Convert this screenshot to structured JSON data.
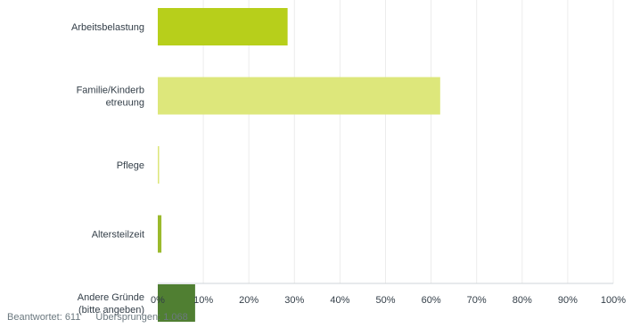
{
  "chart_data": {
    "type": "bar",
    "orientation": "horizontal",
    "categories": [
      [
        "Arbeitsbelastung"
      ],
      [
        "Familie/Kinderb",
        "etreuung"
      ],
      [
        "Pflege"
      ],
      [
        "Altersteilzeit"
      ],
      [
        "Andere Gründe",
        "(bitte angeben)"
      ]
    ],
    "values": [
      28.5,
      62.0,
      0.3,
      0.8,
      8.2
    ],
    "bar_colors": [
      "#b7cf1b",
      "#dde77b",
      "#dde77b",
      "#9bba2c",
      "#507f32"
    ],
    "xlim": [
      0,
      100
    ],
    "x_tick_labels": [
      "0%",
      "10%",
      "20%",
      "30%",
      "40%",
      "50%",
      "60%",
      "70%",
      "80%",
      "90%",
      "100%"
    ],
    "x_ticks": [
      0,
      10,
      20,
      30,
      40,
      50,
      60,
      70,
      80,
      90,
      100
    ],
    "grid": true,
    "title": "",
    "xlabel": "",
    "ylabel": ""
  },
  "footer": {
    "answered": "Beantwortet: 611",
    "skipped": "Übersprungen: 1.068"
  },
  "colors": {
    "grid": "#ececec",
    "axis": "#cfd4d8",
    "label": "#333e48",
    "footer_text": "#6b787f"
  }
}
